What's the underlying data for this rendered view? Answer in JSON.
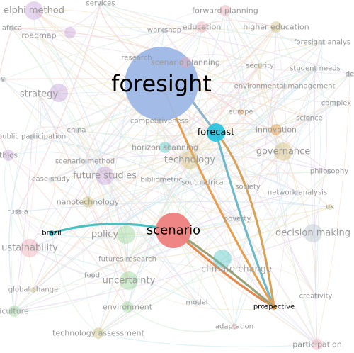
{
  "colors": {
    "blue": "#9eb8e6",
    "cyan": "#2ec4df",
    "red": "#ee8080",
    "orange": "#e69a3d",
    "gold": "#d3bf7a",
    "purple": "#c8a2d9",
    "green": "#9ad49a",
    "pink": "#f0a8b8",
    "grey": "#b9c4cf",
    "teal": "#58c8c8",
    "olive": "#c9c27a"
  },
  "highlight_links": [
    {
      "from": "foresight",
      "to": "forecast",
      "color": "#8fb4c8"
    },
    {
      "from": "forecast",
      "to": "prospective",
      "color": "#6fb9c9"
    },
    {
      "from": "forecast",
      "to": "prospective",
      "color": "#d6a35a"
    },
    {
      "from": "foresight",
      "to": "prospective",
      "color": "#e5a052"
    },
    {
      "from": "scenario",
      "to": "prospective",
      "color": "#e28a4f"
    },
    {
      "from": "scenario",
      "to": "prospective",
      "color": "#9aa276"
    },
    {
      "from": "brazil",
      "to": "scenario",
      "color": "#4cc0c0"
    }
  ],
  "nodes": [
    {
      "id": "foresight",
      "label": "foresight",
      "color": "blue",
      "size": "xl",
      "emphasis": true
    },
    {
      "id": "forecast",
      "label": "forecast",
      "color": "cyan",
      "size": "m",
      "emphasis": true
    },
    {
      "id": "scenario",
      "label": "scenario",
      "color": "red",
      "size": "l",
      "emphasis": true
    },
    {
      "id": "prospective",
      "label": "prospective",
      "color": "orange",
      "size": "xs",
      "emphasis": true
    },
    {
      "id": "brazil",
      "label": "brazil",
      "color": "cyan",
      "size": "xs",
      "emphasis": true
    },
    {
      "id": "delphi-method",
      "label": "elphi method",
      "color": "purple",
      "size": "m"
    },
    {
      "id": "services",
      "label": "services",
      "color": "grey",
      "size": "xs"
    },
    {
      "id": "forward-planning",
      "label": "forward planning",
      "color": "pink",
      "size": "s"
    },
    {
      "id": "education",
      "label": "education",
      "color": "pink",
      "size": "s"
    },
    {
      "id": "workshop",
      "label": "workshop",
      "color": "grey",
      "size": "xs"
    },
    {
      "id": "higher-education",
      "label": "higher education",
      "color": "gold",
      "size": "s"
    },
    {
      "id": "foresight-analysis",
      "label": "foresight analys",
      "color": "grey",
      "size": "xs"
    },
    {
      "id": "roadmap",
      "label": "roadmap",
      "color": "purple",
      "size": "s"
    },
    {
      "id": "research",
      "label": "research",
      "color": "grey",
      "size": "xs"
    },
    {
      "id": "scenario-planning",
      "label": "scenario planning",
      "color": "pink",
      "size": "s"
    },
    {
      "id": "security",
      "label": "security",
      "color": "olive",
      "size": "xs"
    },
    {
      "id": "student-needs",
      "label": "student needs",
      "color": "grey",
      "size": "xs"
    },
    {
      "id": "de",
      "label": "de",
      "color": "grey",
      "size": "xs"
    },
    {
      "id": "strategy",
      "label": "strategy",
      "color": "purple",
      "size": "m"
    },
    {
      "id": "environmental-management",
      "label": "environmental management",
      "color": "grey",
      "size": "xs"
    },
    {
      "id": "complex",
      "label": "complex",
      "color": "grey",
      "size": "xs"
    },
    {
      "id": "china",
      "label": "china",
      "color": "grey",
      "size": "xs"
    },
    {
      "id": "competitiveness",
      "label": "competitiveness",
      "color": "grey",
      "size": "xs"
    },
    {
      "id": "europe",
      "label": "europe",
      "color": "orange",
      "size": "xs"
    },
    {
      "id": "science",
      "label": "science",
      "color": "grey",
      "size": "xs"
    },
    {
      "id": "public-participation",
      "label": "public participation",
      "color": "grey",
      "size": "xs"
    },
    {
      "id": "innovation",
      "label": "innovation",
      "color": "orange",
      "size": "s"
    },
    {
      "id": "ethics",
      "label": "thics",
      "color": "purple",
      "size": "s"
    },
    {
      "id": "scenario-method",
      "label": "scenario method",
      "color": "grey",
      "size": "xs"
    },
    {
      "id": "horizon-scanning",
      "label": "horizon scanning",
      "color": "teal",
      "size": "s"
    },
    {
      "id": "governance",
      "label": "governance",
      "color": "gold",
      "size": "m"
    },
    {
      "id": "technology",
      "label": "technology",
      "color": "gold",
      "size": "m"
    },
    {
      "id": "philosophy",
      "label": "philosophy",
      "color": "grey",
      "size": "xs"
    },
    {
      "id": "future-studies",
      "label": "future studies",
      "color": "purple",
      "size": "m"
    },
    {
      "id": "case-study",
      "label": "case study",
      "color": "grey",
      "size": "xs"
    },
    {
      "id": "bibliometric",
      "label": "bibliometric",
      "color": "grey",
      "size": "xs"
    },
    {
      "id": "south-africa",
      "label": "south africa",
      "color": "grey",
      "size": "xs"
    },
    {
      "id": "society",
      "label": "society",
      "color": "grey",
      "size": "xs"
    },
    {
      "id": "network-analysis",
      "label": "network analysis",
      "color": "grey",
      "size": "xs"
    },
    {
      "id": "uk",
      "label": "uk",
      "color": "olive",
      "size": "xs"
    },
    {
      "id": "nanotechnology",
      "label": "nanotechnology",
      "color": "olive",
      "size": "s"
    },
    {
      "id": "russia",
      "label": "russia",
      "color": "grey",
      "size": "xs"
    },
    {
      "id": "poverty",
      "label": "poverty",
      "color": "grey",
      "size": "xs"
    },
    {
      "id": "policy",
      "label": "policy",
      "color": "green",
      "size": "m"
    },
    {
      "id": "decision-making",
      "label": "decision making",
      "color": "grey",
      "size": "m"
    },
    {
      "id": "sustainability",
      "label": "ustainability",
      "color": "pink",
      "size": "m"
    },
    {
      "id": "futures-research",
      "label": "futures research",
      "color": "grey",
      "size": "xs"
    },
    {
      "id": "climate-change",
      "label": "climate change",
      "color": "teal",
      "size": "m"
    },
    {
      "id": "food",
      "label": "food",
      "color": "grey",
      "size": "xs"
    },
    {
      "id": "uncertainty",
      "label": "uncertainty",
      "color": "green",
      "size": "m"
    },
    {
      "id": "global-change",
      "label": "global change",
      "color": "olive",
      "size": "xs"
    },
    {
      "id": "creativity",
      "label": "creativity",
      "color": "grey",
      "size": "xs"
    },
    {
      "id": "agriculture",
      "label": "iculture",
      "color": "green",
      "size": "s"
    },
    {
      "id": "environment",
      "label": "environment",
      "color": "green",
      "size": "s"
    },
    {
      "id": "model",
      "label": "model",
      "color": "grey",
      "size": "xs"
    },
    {
      "id": "technology-assessment",
      "label": "technology assessment",
      "color": "olive",
      "size": "s"
    },
    {
      "id": "adaptation",
      "label": "adaptation",
      "color": "pink",
      "size": "xs"
    },
    {
      "id": "participation",
      "label": "participation",
      "color": "pink",
      "size": "s"
    },
    {
      "id": "africa",
      "label": "africa",
      "color": "grey",
      "size": "xs"
    },
    {
      "id": "v",
      "label": "v",
      "color": "grey",
      "size": "xs"
    }
  ]
}
